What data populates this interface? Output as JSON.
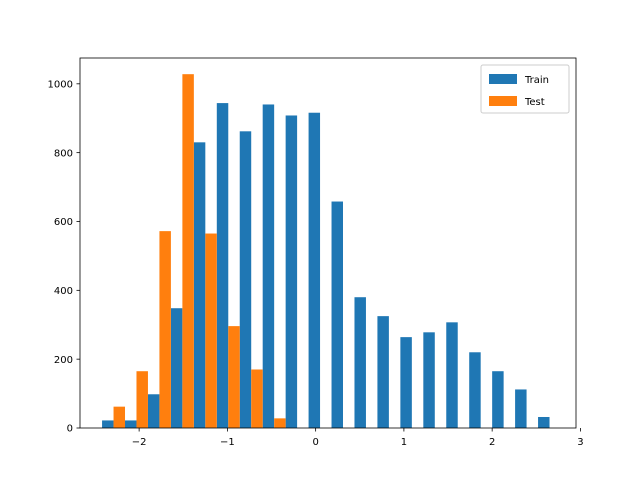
{
  "chart_data": {
    "type": "bar",
    "title": "",
    "xlabel": "",
    "ylabel": "",
    "xlim": [
      -2.67,
      2.95
    ],
    "ylim": [
      0,
      1075
    ],
    "xticks": [
      -2,
      -1,
      0,
      1,
      2,
      3
    ],
    "xtick_labels": [
      "−2",
      "−1",
      "0",
      "1",
      "2",
      "3"
    ],
    "yticks": [
      0,
      200,
      400,
      600,
      800,
      1000
    ],
    "ytick_labels": [
      "0",
      "200",
      "400",
      "600",
      "800",
      "1000"
    ],
    "grid": false,
    "legend_position": "top-right",
    "bin_edges": [
      -2.42,
      -2.16,
      -1.9,
      -1.64,
      -1.38,
      -1.12,
      -0.86,
      -0.6,
      -0.34,
      -0.08,
      0.18,
      0.44,
      0.7,
      0.96,
      1.22,
      1.48,
      1.74,
      2.0,
      2.26,
      2.52,
      2.78
    ],
    "series": [
      {
        "name": "Train",
        "color": "#1f77b4",
        "values": [
          22,
          22,
          98,
          348,
          830,
          944,
          862,
          940,
          908,
          916,
          658,
          380,
          325,
          264,
          278,
          307,
          220,
          165,
          112,
          32
        ]
      },
      {
        "name": "Test",
        "color": "#ff7f0e",
        "values": [
          62,
          165,
          572,
          1028,
          565,
          296,
          170,
          28,
          0,
          0,
          0,
          0,
          0,
          0,
          0,
          0,
          0,
          0,
          0,
          0
        ]
      }
    ]
  }
}
